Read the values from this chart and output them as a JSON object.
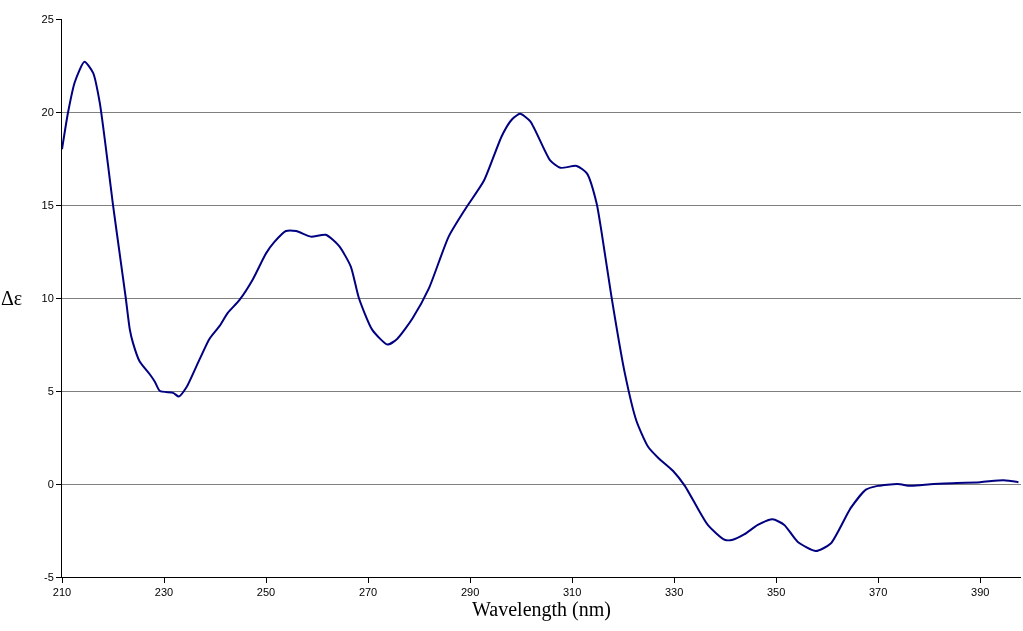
{
  "chart_data": {
    "type": "line",
    "xlabel": "Wavelength (nm)",
    "ylabel": "Δε",
    "series": [
      {
        "color": "#000080",
        "x": [
          210,
          211.2,
          212.5,
          214.4,
          216.1,
          217.4,
          219.0,
          220.0,
          221.3,
          222.5,
          223.3,
          223.9,
          225.2,
          227.2,
          228.2,
          229.2,
          231.8,
          232.9,
          234.4,
          236.3,
          238.9,
          240.9,
          242.5,
          244.8,
          247.4,
          250.0,
          251.6,
          253.9,
          255.9,
          258.8,
          261.7,
          264.3,
          266.6,
          268.2,
          270.8,
          273.8,
          275.7,
          278.7,
          281.9,
          285.8,
          289.1,
          292.7,
          296.2,
          298.2,
          299.8,
          301.8,
          305.7,
          307.7,
          310.9,
          312.9,
          314.8,
          315.8,
          317.7,
          320.3,
          322.6,
          324.9,
          326.9,
          329.8,
          332.1,
          336.6,
          339.9,
          341.5,
          343.8,
          346.4,
          349.3,
          351.6,
          354.2,
          357.8,
          360.7,
          364.6,
          367.6,
          369.9,
          373.8,
          376.4,
          380.9,
          390.0,
          394.6,
          397.5
        ],
        "values": [
          18.0,
          20.0,
          21.6,
          22.7,
          22.1,
          20.5,
          17.2,
          15.0,
          12.4,
          10.0,
          8.3,
          7.6,
          6.6,
          5.9,
          5.5,
          5.0,
          4.9,
          4.7,
          5.2,
          6.3,
          7.8,
          8.5,
          9.2,
          9.9,
          11.0,
          12.4,
          13.0,
          13.6,
          13.6,
          13.3,
          13.4,
          12.8,
          11.7,
          10.0,
          8.3,
          7.5,
          7.8,
          8.9,
          10.5,
          13.3,
          14.8,
          16.3,
          18.7,
          19.6,
          19.9,
          19.5,
          17.4,
          17.0,
          17.1,
          16.7,
          15.1,
          13.5,
          10.1,
          6.0,
          3.4,
          2.0,
          1.4,
          0.7,
          -0.1,
          -2.2,
          -3.0,
          -3.0,
          -2.7,
          -2.2,
          -1.9,
          -2.2,
          -3.1,
          -3.6,
          -3.2,
          -1.3,
          -0.3,
          -0.1,
          0.0,
          -0.1,
          0.0,
          0.1,
          0.2,
          0.1
        ]
      }
    ],
    "xlim": [
      210,
      398
    ],
    "xticks": [
      210,
      230,
      250,
      270,
      290,
      310,
      330,
      350,
      370,
      390
    ],
    "ylim": [
      -5,
      25
    ],
    "yticks": [
      -5,
      0,
      5,
      10,
      15,
      20,
      25
    ],
    "grid": "y",
    "marker": "none",
    "line_style": "solid"
  }
}
